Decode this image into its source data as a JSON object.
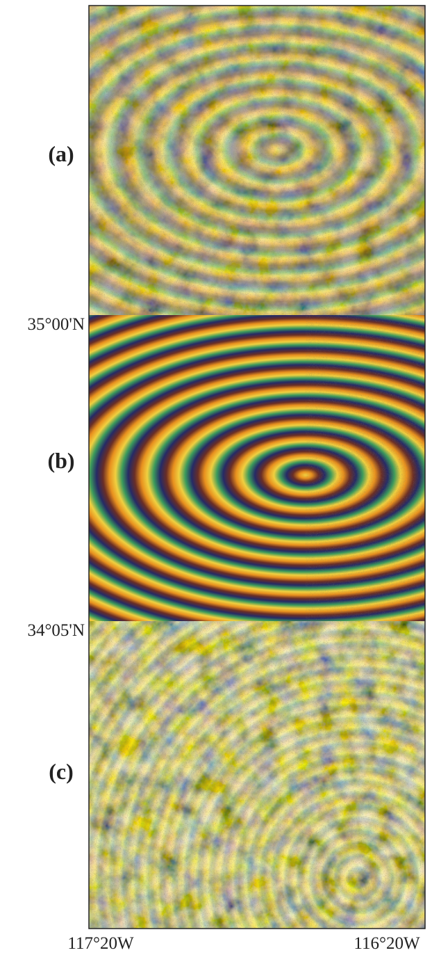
{
  "panels": [
    {
      "label": "(a)"
    },
    {
      "label": "(b)"
    },
    {
      "label": "(c)"
    }
  ],
  "latitude_labels": [
    "35°00'N",
    "34°05'N"
  ],
  "longitude_labels": [
    "117°20W",
    "116°20W"
  ]
}
